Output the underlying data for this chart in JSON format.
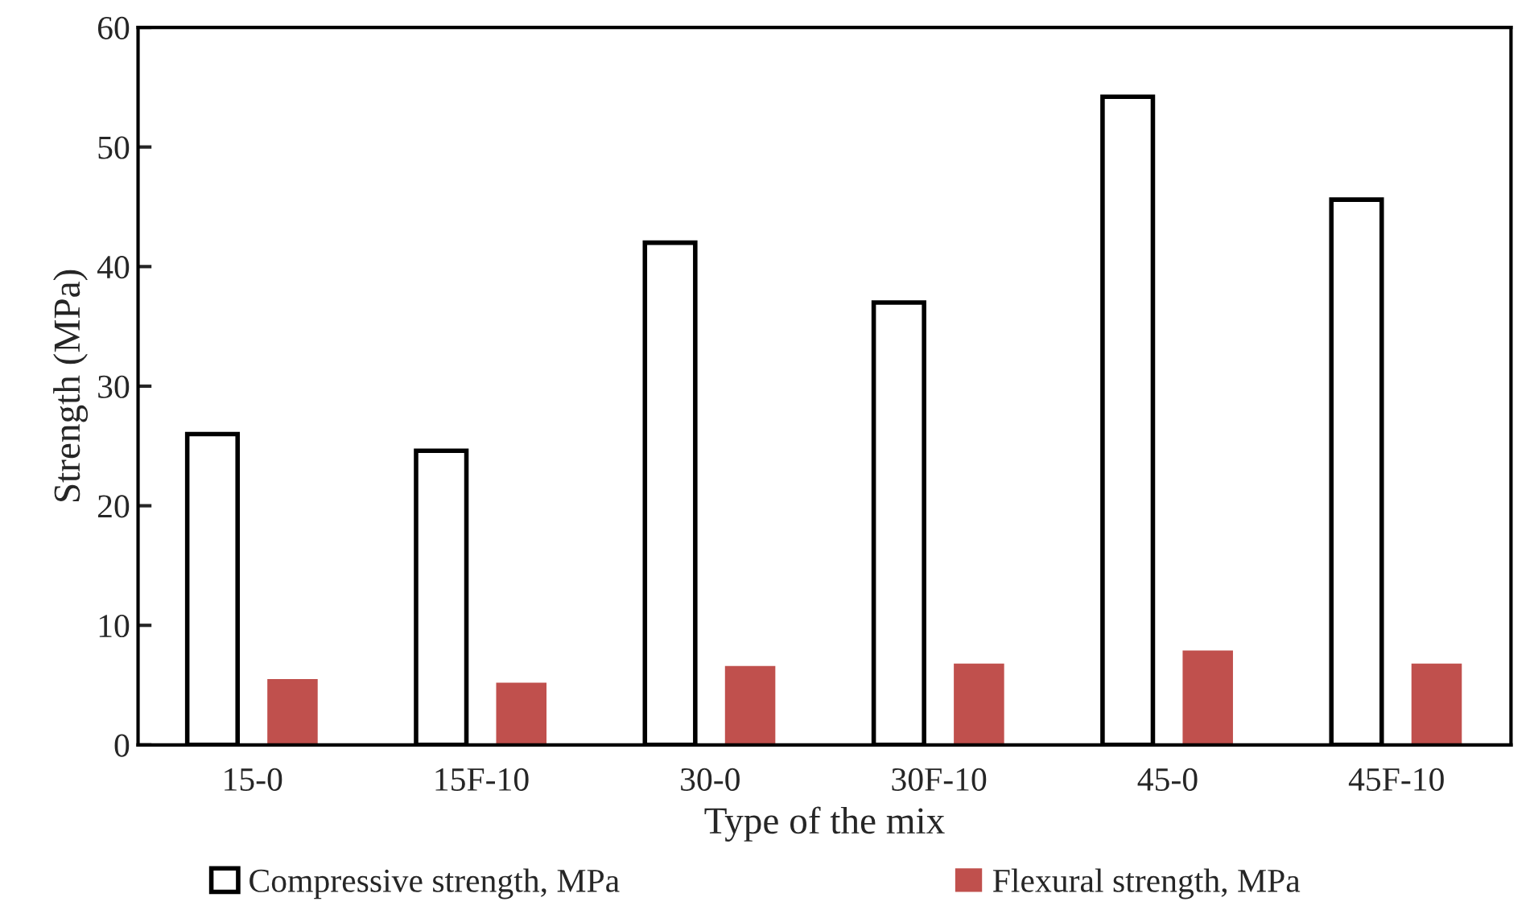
{
  "chart_data": {
    "type": "bar",
    "xlabel": "Type of the mix",
    "ylabel": "Strength (MPa)",
    "categories": [
      "15-0",
      "15F-10",
      "30-0",
      "30F-10",
      "45-0",
      "45F-10"
    ],
    "series": [
      {
        "name": "Compressive strength, MPa",
        "color": "#ffffff",
        "values": [
          26.0,
          24.6,
          42.0,
          37.0,
          54.2,
          45.6
        ]
      },
      {
        "name": "Flexural strength, MPa",
        "color": "#c0504d",
        "values": [
          5.5,
          5.2,
          6.6,
          6.8,
          7.9,
          6.8
        ]
      }
    ],
    "ylim": [
      0,
      60
    ],
    "yticks": [
      0,
      10,
      20,
      30,
      40,
      50,
      60
    ],
    "grid": false,
    "legend": "bottom"
  }
}
